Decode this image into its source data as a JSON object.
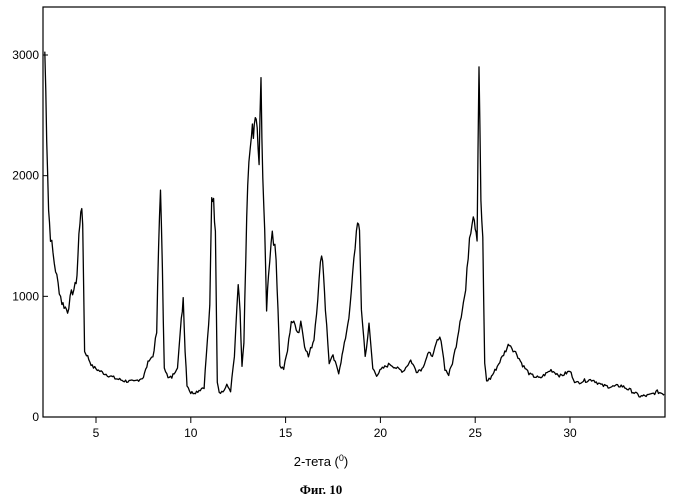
{
  "chart_data": {
    "type": "line",
    "title": "",
    "xlabel": "2-тета (",
    "xlabel_sup": "0",
    "xlabel_suffix": ")",
    "ylabel": "",
    "caption": "Фиг. 10",
    "xlim": [
      2.3,
      35
    ],
    "ylim": [
      0,
      3000
    ],
    "xticks": [
      5,
      10,
      15,
      20,
      25,
      30
    ],
    "yticks": [
      0,
      1000,
      2000,
      3000
    ],
    "grid": false,
    "line_color": "#000000",
    "series": [
      {
        "x": [
          2.3,
          2.4,
          2.5,
          2.6,
          2.8,
          3.0,
          3.2,
          3.5,
          3.7,
          3.9,
          4.0,
          4.1,
          4.2,
          4.3,
          4.4,
          4.5,
          4.8,
          5.2,
          5.6,
          6.0,
          6.5,
          7.0,
          7.5,
          7.8,
          8.0,
          8.2,
          8.3,
          8.4,
          8.5,
          8.6,
          8.8,
          9.0,
          9.3,
          9.5,
          9.6,
          9.7,
          9.8,
          10.0,
          10.3,
          10.7,
          11.0,
          11.1,
          11.2,
          11.3,
          11.4,
          11.5,
          11.7,
          11.9,
          12.1,
          12.3,
          12.5,
          12.6,
          12.7,
          12.8,
          12.9,
          13.0,
          13.2,
          13.3,
          13.4,
          13.5,
          13.6,
          13.7,
          13.8,
          13.9,
          14.0,
          14.1,
          14.3,
          14.5,
          14.6,
          14.7,
          14.9,
          15.1,
          15.3,
          15.5,
          15.7,
          15.8,
          16.0,
          16.2,
          16.5,
          16.7,
          16.9,
          17.0,
          17.1,
          17.3,
          17.5,
          17.8,
          18.1,
          18.4,
          18.6,
          18.8,
          18.9,
          19.0,
          19.2,
          19.4,
          19.6,
          19.8,
          20.1,
          20.5,
          20.9,
          21.2,
          21.6,
          21.9,
          22.2,
          22.5,
          22.8,
          23.0,
          23.2,
          23.4,
          23.6,
          23.8,
          24.0,
          24.2,
          24.5,
          24.7,
          24.9,
          25.0,
          25.1,
          25.2,
          25.3,
          25.4,
          25.5,
          25.6,
          25.8,
          26.1,
          26.5,
          26.8,
          27.0,
          27.2,
          27.5,
          27.9,
          28.4,
          29.0,
          29.5,
          30.0,
          30.3,
          30.7,
          31.2,
          31.7,
          32.2,
          32.7,
          33.2,
          33.7,
          34.2,
          34.6,
          35.0
        ],
        "y": [
          3030,
          2350,
          1720,
          1500,
          1280,
          1100,
          950,
          880,
          1020,
          1080,
          1180,
          1500,
          1740,
          1600,
          540,
          520,
          420,
          380,
          350,
          320,
          300,
          290,
          330,
          480,
          500,
          700,
          1400,
          1930,
          1200,
          420,
          320,
          330,
          420,
          800,
          990,
          550,
          270,
          200,
          210,
          250,
          900,
          1800,
          1830,
          1500,
          300,
          210,
          210,
          260,
          220,
          500,
          1100,
          850,
          420,
          600,
          1300,
          1900,
          2400,
          2300,
          2500,
          2350,
          2100,
          2770,
          2000,
          1500,
          900,
          1200,
          1560,
          1300,
          900,
          420,
          400,
          550,
          800,
          760,
          700,
          800,
          600,
          500,
          650,
          1000,
          1380,
          1200,
          900,
          450,
          500,
          370,
          600,
          900,
          1300,
          1650,
          1500,
          900,
          500,
          760,
          400,
          350,
          400,
          440,
          400,
          380,
          470,
          380,
          400,
          520,
          520,
          630,
          650,
          400,
          350,
          450,
          600,
          800,
          1050,
          1500,
          1700,
          1600,
          1500,
          2940,
          1800,
          1450,
          450,
          300,
          320,
          400,
          520,
          610,
          560,
          520,
          430,
          350,
          320,
          390,
          340,
          380,
          280,
          300,
          310,
          260,
          250,
          260,
          220,
          170,
          180,
          210,
          190
        ]
      }
    ]
  }
}
